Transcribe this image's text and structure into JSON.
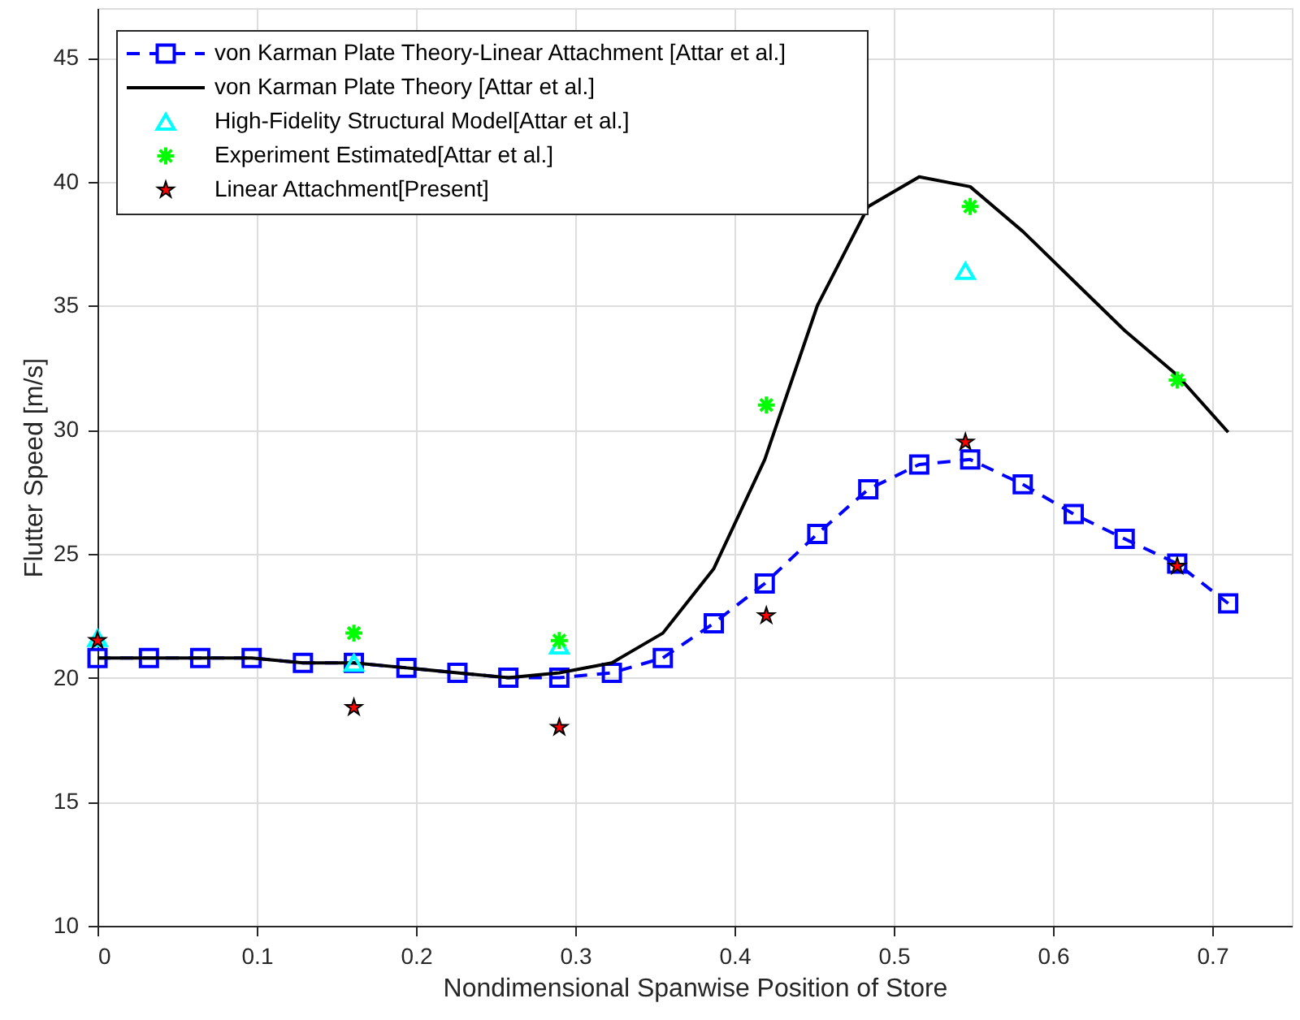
{
  "chart_data": {
    "type": "line",
    "xlabel": "Nondimensional Spanwise Position of Store",
    "ylabel": "Flutter Speed [m/s]",
    "xlim": [
      0,
      0.75
    ],
    "ylim": [
      10,
      47
    ],
    "xticks": [
      0,
      {
        "value": 0.1,
        "label": "0.1"
      },
      {
        "value": 0.2,
        "label": "0.2"
      },
      {
        "value": 0.3,
        "label": "0.3"
      },
      {
        "value": 0.4,
        "label": "0.4"
      },
      {
        "value": 0.5,
        "label": "0.5"
      },
      {
        "value": 0.6,
        "label": "0.6"
      },
      {
        "value": 0.7,
        "label": "0.7"
      }
    ],
    "yticks": [
      10,
      15,
      20,
      25,
      30,
      35,
      40,
      45
    ],
    "grid": true,
    "legend": "top left",
    "series": [
      {
        "name": "von Karman Plate Theory-Linear Attachment [Attar et al.]",
        "color": "#0000ff",
        "marker": "square",
        "line_style": "dashed",
        "x": [
          0,
          0.0323,
          0.0645,
          0.0968,
          0.129,
          0.161,
          0.194,
          0.226,
          0.258,
          0.29,
          0.323,
          0.355,
          0.387,
          0.419,
          0.452,
          0.484,
          0.516,
          0.548,
          0.581,
          0.613,
          0.645,
          0.678,
          0.71
        ],
        "values": [
          20.8,
          20.8,
          20.8,
          20.8,
          20.6,
          20.6,
          20.4,
          20.2,
          20.0,
          20.0,
          20.2,
          20.8,
          22.2,
          23.8,
          25.8,
          27.6,
          28.6,
          28.8,
          27.8,
          26.6,
          25.6,
          24.6,
          23.0
        ]
      },
      {
        "name": "von Karman Plate Theory [Attar et al.]",
        "color": "#000000",
        "marker": "none",
        "line_style": "solid",
        "x": [
          0,
          0.0323,
          0.0645,
          0.0968,
          0.129,
          0.161,
          0.194,
          0.226,
          0.258,
          0.29,
          0.323,
          0.355,
          0.387,
          0.419,
          0.452,
          0.484,
          0.516,
          0.548,
          0.581,
          0.613,
          0.645,
          0.678,
          0.71
        ],
        "values": [
          20.8,
          20.8,
          20.8,
          20.8,
          20.6,
          20.6,
          20.4,
          20.2,
          20.0,
          20.2,
          20.6,
          21.8,
          24.4,
          28.8,
          35.0,
          39.0,
          40.2,
          39.8,
          38.0,
          36.0,
          34.0,
          32.2,
          29.9
        ]
      },
      {
        "name": "High-Fidelity Structural Model[Attar et al.]",
        "type": "scatter",
        "color": "#00ffff",
        "marker": "triangle",
        "x": [
          0,
          0.161,
          0.29,
          0.545
        ],
        "values": [
          21.6,
          20.6,
          21.3,
          36.4
        ]
      },
      {
        "name": "Experiment Estimated[Attar et al.]",
        "type": "scatter",
        "color": "#00ff00",
        "marker": "cross",
        "x": [
          0.161,
          0.29,
          0.42,
          0.548,
          0.678
        ],
        "values": [
          21.8,
          21.5,
          31.0,
          39.0,
          32.0
        ]
      },
      {
        "name": "Linear Attachment[Present]",
        "type": "scatter",
        "color": "#ff0000",
        "marker": "star",
        "x": [
          0,
          0.161,
          0.29,
          0.42,
          0.545,
          0.678
        ],
        "values": [
          21.5,
          18.8,
          18.0,
          22.5,
          29.5,
          24.5
        ]
      }
    ]
  }
}
